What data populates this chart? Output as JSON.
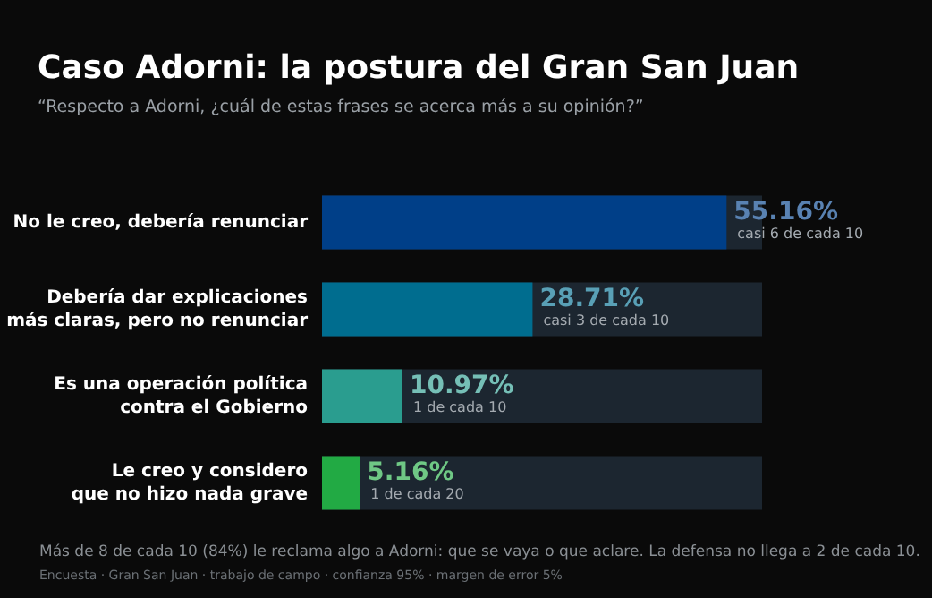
{
  "chart_data": {
    "type": "bar",
    "orientation": "horizontal",
    "title": "Caso Adorni: la postura del Gran San Juan",
    "subtitle": "“Respecto a Adorni, ¿cuál de estas frases se acerca más a su opinión?”",
    "categories": [
      "No le creo, debería renunciar",
      "Debería dar explicaciones\nmás claras, pero no renunciar",
      "Es una operación política\ncontra el Gobierno",
      "Le creo y considero\nque no hizo nada grave"
    ],
    "values": [
      55.16,
      28.71,
      10.97,
      5.16
    ],
    "colors": [
      "#003f88",
      "#006d8f",
      "#2a9d8f",
      "#22aa44"
    ],
    "value_labels": [
      "55.16%",
      "28.71%",
      "10.97%",
      "5.16%"
    ],
    "xlim": [
      0,
      60
    ],
    "annotations": [
      {
        "text": "casi 6 de cada 10",
        "x": 55.16,
        "y": "No le creo, debería renunciar"
      },
      {
        "text": "casi 3 de cada 10",
        "x": 28.71,
        "y": "Debería dar explicaciones\nmás claras, pero no renunciar"
      },
      {
        "text": "1 de cada 10",
        "x": 10.97,
        "y": "Es una operación política\ncontra el Gobierno"
      },
      {
        "text": "1 de cada 20",
        "x": 5.16,
        "y": "Le creo y considero\nque no hizo nada grave"
      },
      "Más de 8 de cada 10 (84%) le reclama algo a Adorni: que se vaya o que aclare. La defensa no llega a 2 de cada 10.",
      "Encuesta · Gran San Juan · trabajo de campo · confianza 95% · margen de error 5%"
    ]
  }
}
